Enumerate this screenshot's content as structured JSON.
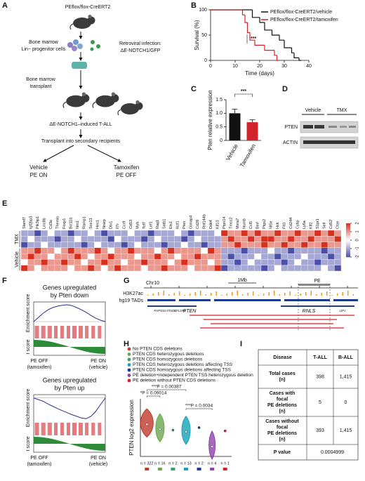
{
  "panel_labels": [
    "A",
    "B",
    "C",
    "D",
    "E",
    "F",
    "G",
    "H",
    "I"
  ],
  "schematic": {
    "mouse_label": "PEflox/flox-CreERT2",
    "progenitors": [
      "Bone marrow",
      "Lin− progenitor cells"
    ],
    "infection": [
      "Retroviral infection:",
      "ΔE-NOTCH1/GFP"
    ],
    "transplant": [
      "Bone marrow",
      "transplant"
    ],
    "disease": "ΔE-NOTCH1–induced T-ALL",
    "secondary": "Transplant into secondary recipients",
    "arms": [
      {
        "name": "Vehicle",
        "state": "PE ON",
        "color": "#111111"
      },
      {
        "name": "Tamoxifen",
        "state": "PE OFF",
        "color": "#d2232a"
      }
    ]
  },
  "chart_data": [
    {
      "type": "survival",
      "xlabel": "Time (days)",
      "ylabel": "Survival (%)",
      "xlim": [
        0,
        40
      ],
      "xticks": [
        0,
        10,
        20,
        30,
        40
      ],
      "ylim": [
        0,
        100
      ],
      "yticks": [
        0,
        50,
        100
      ],
      "annotation": "***",
      "series": [
        {
          "name": "PEflox/flox-CreERT2/vehicle",
          "color": "#111111",
          "x": [
            0,
            17,
            20,
            22,
            25,
            28,
            30,
            33,
            34,
            36
          ],
          "values": [
            100,
            85,
            75,
            60,
            50,
            40,
            25,
            15,
            5,
            0
          ]
        },
        {
          "name": "PEflox/flox-CreERT2/tamoxifen",
          "color": "#d2232a",
          "x": [
            0,
            13,
            14,
            15,
            16,
            18,
            22,
            26,
            27
          ],
          "values": [
            100,
            90,
            75,
            55,
            40,
            30,
            20,
            10,
            0
          ]
        }
      ]
    },
    {
      "type": "bar",
      "ylabel": "Pten relative expression",
      "categories": [
        "Vehicle",
        "Tamoxifen"
      ],
      "values": [
        1.0,
        0.67
      ],
      "errors": [
        0.15,
        0.09
      ],
      "colors": [
        "#111111",
        "#d2232a"
      ],
      "ylim": [
        0,
        1.5
      ],
      "yticks": [
        0,
        0.5,
        {
          "value": 1,
          "label": "1.0"
        },
        1.5
      ],
      "annotation": "***"
    },
    {
      "type": "heatmap",
      "zlim": [
        -2,
        2
      ],
      "zticks": [
        2,
        1,
        0,
        -1,
        -2
      ],
      "colors": [
        "#4b4fa8",
        "#ffffff",
        "#d7301f"
      ],
      "genes": [
        "Slamf7",
        "Igf2bp3",
        "Pik3ip1",
        "Lrrc8b",
        "Cd3e",
        "Themis",
        "Foxp1",
        "Bcl11b",
        "Nrn1",
        "Ramp1",
        "Sox13",
        "Hes1",
        "Nrarp",
        "Dtx1",
        "Il7r",
        "Ccr9",
        "Cd53",
        "Myb",
        "Tcf7",
        "Lef1",
        "Rag1",
        "Satb1",
        "Ets1",
        "Ikzf1",
        "Pten",
        "Gimap4",
        "Cd28",
        "Rnf144b",
        "Ddit4",
        "Klf13",
        "Ptpn14",
        "Tmcc2",
        "Mxra7",
        "Numb",
        "Ccl5",
        "Bmf",
        "Ptgs2",
        "Nt5e",
        "Hck",
        "Flt3",
        "Cd244",
        "Cytip",
        "Ly6a",
        "Klf2",
        "S1pr1",
        "Sell",
        "Cd52",
        "Ctse"
      ],
      "series": [
        {
          "name": "TMX",
          "values": [
            [
              -1,
              -1,
              -2,
              -1,
              0,
              -1,
              -1,
              -2,
              -1,
              -1,
              0,
              -1,
              -2,
              -1,
              -1,
              -1,
              0,
              -1,
              -1,
              -2,
              -1,
              -1,
              -1,
              0,
              -1,
              -2,
              -1,
              -1,
              -1,
              0,
              2,
              1,
              1,
              2,
              1,
              2,
              1,
              1,
              2,
              1,
              1,
              2,
              1,
              1,
              2,
              1,
              2,
              1
            ],
            [
              -1,
              0,
              -1,
              -1,
              -1,
              -2,
              -1,
              -1,
              0,
              -1,
              -1,
              -1,
              -1,
              -2,
              0,
              -1,
              -1,
              -1,
              -2,
              -1,
              0,
              -1,
              -1,
              -1,
              -2,
              -1,
              0,
              -1,
              -1,
              -1,
              1,
              2,
              1,
              1,
              2,
              1,
              2,
              2,
              1,
              1,
              2,
              1,
              1,
              2,
              1,
              1,
              1,
              2
            ],
            [
              -2,
              -1,
              -1,
              0,
              -1,
              -1,
              -1,
              -1,
              -1,
              -2,
              -1,
              0,
              -1,
              -1,
              -1,
              -2,
              -1,
              0,
              -1,
              -1,
              -1,
              -2,
              -1,
              -1,
              0,
              -1,
              -1,
              -2,
              -1,
              -1,
              1,
              1,
              2,
              1,
              1,
              1,
              2,
              1,
              1,
              2,
              1,
              1,
              2,
              1,
              1,
              2,
              1,
              1
            ]
          ]
        },
        {
          "name": "Vehicle",
          "values": [
            [
              1,
              1,
              2,
              1,
              1,
              0,
              1,
              2,
              1,
              1,
              1,
              2,
              1,
              0,
              1,
              1,
              2,
              1,
              1,
              1,
              0,
              1,
              2,
              1,
              1,
              1,
              1,
              0,
              2,
              1,
              -1,
              -1,
              -1,
              -2,
              -1,
              -1,
              -1,
              0,
              -1,
              -1,
              -2,
              -1,
              -1,
              -1,
              -1,
              -2,
              -1,
              -1
            ],
            [
              1,
              2,
              1,
              1,
              0,
              1,
              1,
              1,
              2,
              1,
              0,
              1,
              1,
              2,
              1,
              1,
              1,
              0,
              1,
              1,
              2,
              1,
              1,
              0,
              1,
              1,
              2,
              1,
              1,
              1,
              -1,
              -2,
              -1,
              -1,
              -1,
              0,
              -1,
              -1,
              -2,
              -1,
              -1,
              -1,
              0,
              -1,
              -1,
              -1,
              -2,
              -1
            ],
            [
              0,
              1,
              1,
              2,
              1,
              1,
              2,
              1,
              1,
              0,
              1,
              1,
              2,
              1,
              1,
              0,
              1,
              1,
              2,
              1,
              1,
              1,
              0,
              1,
              2,
              1,
              1,
              1,
              0,
              1,
              -1,
              -1,
              -2,
              -1,
              0,
              -1,
              -1,
              -1,
              -1,
              -2,
              -1,
              0,
              -1,
              -1,
              -2,
              -1,
              -1,
              -1
            ],
            [
              2,
              1,
              0,
              1,
              1,
              1,
              1,
              0,
              1,
              1,
              2,
              1,
              0,
              1,
              2,
              1,
              1,
              1,
              0,
              1,
              1,
              2,
              1,
              1,
              1,
              0,
              1,
              1,
              1,
              2,
              -2,
              -1,
              -1,
              -1,
              -1,
              -1,
              -2,
              -1,
              0,
              -1,
              -1,
              -1,
              -1,
              -1,
              -1,
              0,
              -1,
              -2
            ]
          ]
        }
      ]
    },
    {
      "type": "gsea",
      "title": [
        "Genes upregulated",
        "by Pten down"
      ],
      "ylabel": "Enrichment score",
      "tlabel": "t score",
      "xlabels": [
        [
          "PE OFF",
          "(tamoxifen)"
        ],
        [
          "PE ON",
          "(vehicle)"
        ]
      ],
      "ylim": [
        -0.1,
        0.7
      ],
      "color": "#2b2f8f",
      "values": [
        0,
        0.15,
        0.3,
        0.42,
        0.5,
        0.55,
        0.58,
        0.6,
        0.57,
        0.5,
        0.42,
        0.33,
        0.22,
        0.12,
        0.05,
        0
      ]
    },
    {
      "type": "gsea",
      "title": [
        "Genes upregulated",
        "by Pten up"
      ],
      "ylabel": "Enrichment score",
      "tlabel": "t score",
      "xlabels": [
        [
          "PE OFF",
          "(tamoxifen)"
        ],
        [
          "PE ON",
          "(vehicle)"
        ]
      ],
      "ylim": [
        -0.7,
        0.1
      ],
      "color": "#2b2f8f",
      "values": [
        0,
        -0.05,
        -0.1,
        -0.18,
        -0.25,
        -0.32,
        -0.38,
        -0.44,
        -0.5,
        -0.55,
        -0.6,
        -0.62,
        -0.55,
        -0.4,
        -0.2,
        0
      ]
    },
    {
      "type": "violin",
      "ylabel": "PTEN log2 expression",
      "ylim": [
        3,
        10
      ],
      "annotations": [
        "***P = 0.00387",
        "*P = 0.09014",
        "***P = 0.0034"
      ],
      "series": [
        {
          "name": "No PTEN CDS deletions",
          "color": "#c0392b",
          "n_label": "n = 322",
          "median": 6.9
        },
        {
          "name": "PTEN CDS heterozygous deletions",
          "color": "#6aa84f",
          "n_label": "n = 16",
          "median": 6.3
        },
        {
          "name": "PTEN CDS homozygous deletions",
          "color": "#38a169",
          "n_label": "n = 2",
          "median": 6.2
        },
        {
          "name": "PTEN CDS heterozygous deletions affecting TSS",
          "color": "#17a2b8",
          "n_label": "n = 13",
          "median": 6.0
        },
        {
          "name": "PTEN CDS homozygous deletions affecting TSS",
          "color": "#1f3a93",
          "n_label": "n = 2",
          "median": 6.5
        },
        {
          "name": "PE deletion+independent PTEN TSS heterozygous deletion",
          "color": "#8e44ad",
          "n_label": "n = 4",
          "median": 4.2
        },
        {
          "name": "PE deletion without PTEN CDS deletions",
          "color": "#d2232a",
          "n_label": "n = 1",
          "median": 6.1
        }
      ]
    }
  ],
  "blot": {
    "lanes": [
      "Vehicle",
      "TMX"
    ],
    "bands": [
      "PTEN",
      "ACTIN"
    ]
  },
  "genome": {
    "chrom": "Chr10",
    "scale": "1Mb",
    "element": "PE",
    "tracks": [
      "H3K27ac",
      "hg19 TADs"
    ],
    "genes": [
      "PAPSS2",
      "ATAD1",
      "CFL1P1",
      "PTEN",
      "RNLS",
      "LIPJ"
    ]
  },
  "table": {
    "header": [
      "Disease",
      "T-ALL",
      "B-ALL"
    ],
    "rows": [
      [
        [
          "Total cases",
          "(n)"
        ],
        "398",
        "1,415"
      ],
      [
        [
          "Cases with",
          "focal",
          "PE deletions",
          "(n)"
        ],
        "5",
        "0"
      ],
      [
        [
          "Cases without",
          "focal",
          "PE deletions",
          "(n)"
        ],
        "393",
        "1,415"
      ],
      [
        [
          "P value"
        ],
        "0.0004999"
      ]
    ]
  }
}
